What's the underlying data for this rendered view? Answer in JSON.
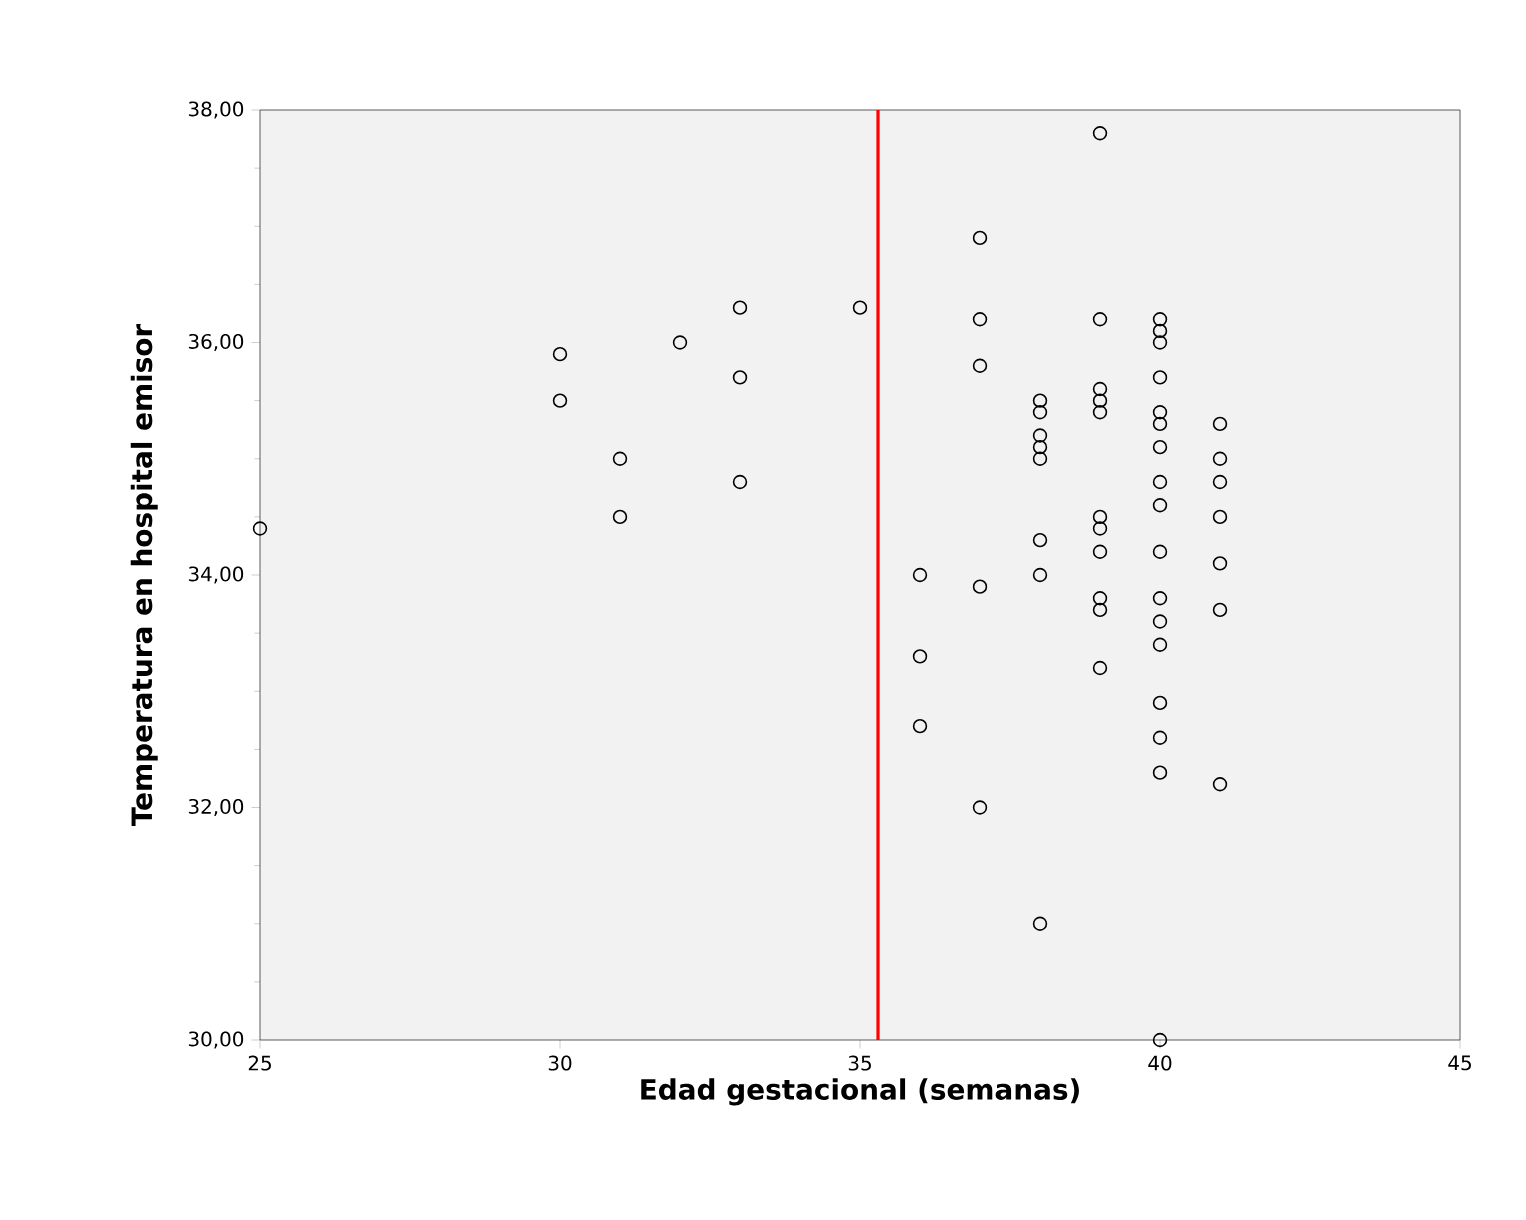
{
  "chart_data": {
    "type": "scatter",
    "xlabel": "Edad gestacional (semanas)",
    "ylabel": "Temperatura en hospital emisor",
    "xlim": [
      25,
      45
    ],
    "xticks": [
      25,
      30,
      35,
      40,
      45
    ],
    "ylim": [
      30,
      38
    ],
    "yticks": [
      {
        "value": 30,
        "label": "30,00"
      },
      {
        "value": 32,
        "label": "32,00"
      },
      {
        "value": 34,
        "label": "34,00"
      },
      {
        "value": 36,
        "label": "36,00"
      },
      {
        "value": 38,
        "label": "38,00"
      }
    ],
    "x": [
      25,
      30,
      30,
      31,
      31,
      32,
      33,
      33,
      33,
      35,
      36,
      36,
      36,
      37,
      37,
      37,
      37,
      37,
      38,
      38,
      38,
      38,
      38,
      38,
      38,
      38,
      39,
      39,
      39,
      39,
      39,
      39,
      39,
      39,
      39,
      39,
      39,
      40,
      40,
      40,
      40,
      40,
      40,
      40,
      40,
      40,
      40,
      40,
      40,
      40,
      40,
      40,
      40,
      40,
      41,
      41,
      41,
      41,
      41,
      41,
      41
    ],
    "values": [
      34.4,
      35.9,
      35.5,
      35.0,
      34.5,
      36.0,
      36.3,
      35.7,
      34.8,
      36.3,
      34.0,
      33.3,
      32.7,
      36.9,
      36.2,
      35.8,
      33.9,
      32.0,
      35.5,
      35.4,
      35.2,
      35.1,
      35.0,
      34.3,
      34.0,
      31.0,
      37.8,
      36.2,
      35.6,
      35.5,
      35.4,
      34.5,
      34.4,
      34.2,
      33.8,
      33.7,
      33.2,
      36.2,
      36.1,
      36.0,
      35.7,
      35.4,
      35.3,
      35.1,
      34.8,
      34.6,
      34.2,
      33.8,
      33.6,
      33.4,
      32.9,
      32.6,
      32.3,
      30.0,
      35.3,
      35.0,
      34.8,
      34.5,
      34.1,
      33.7,
      32.2
    ],
    "color": "#000000",
    "marker": "circle",
    "ref_lines": [
      {
        "axis": "x",
        "value": 35.3,
        "color": "#ff0000"
      }
    ],
    "grid": false
  }
}
